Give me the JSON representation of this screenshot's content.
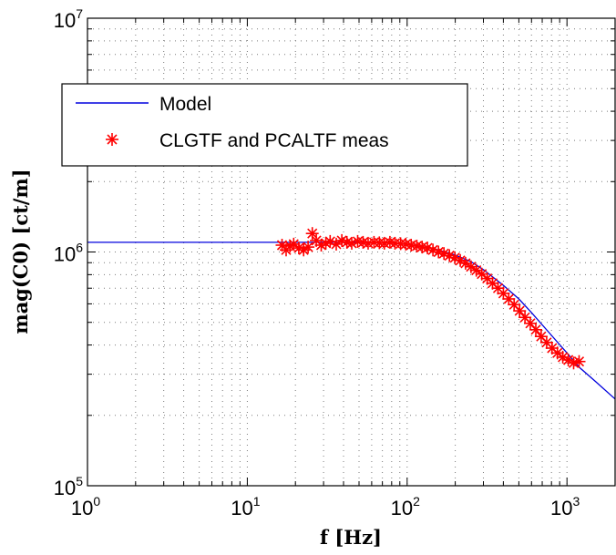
{
  "chart_data": {
    "type": "line",
    "title": "",
    "xlabel": "f  [Hz]",
    "ylabel": "mag(C0)  [ct/m]",
    "xscale": "log",
    "yscale": "log",
    "xlim": [
      1,
      2000
    ],
    "ylim": [
      100000,
      10000000
    ],
    "grid": true,
    "legend_position": "upper-left",
    "x_tick_labels": [
      {
        "value": 1,
        "base": "10",
        "exp": "0"
      },
      {
        "value": 10,
        "base": "10",
        "exp": "1"
      },
      {
        "value": 100,
        "base": "10",
        "exp": "2"
      },
      {
        "value": 1000,
        "base": "10",
        "exp": "3"
      }
    ],
    "y_tick_labels": [
      {
        "value": 100000,
        "base": "10",
        "exp": "5"
      },
      {
        "value": 1000000,
        "base": "10",
        "exp": "6"
      },
      {
        "value": 10000000,
        "base": "10",
        "exp": "7"
      }
    ],
    "series": [
      {
        "name": "Model",
        "style": "line",
        "color": "#0000dd",
        "x": [
          1,
          5,
          10,
          20,
          40,
          60,
          80,
          100,
          120,
          150,
          200,
          250,
          300,
          400,
          500,
          600,
          800,
          1000,
          1200,
          1500,
          2000
        ],
        "y": [
          1100000,
          1100000,
          1100000,
          1100000,
          1100000,
          1095000,
          1090000,
          1075000,
          1060000,
          1030000,
          970000,
          910000,
          840000,
          720000,
          630000,
          550000,
          440000,
          370000,
          320000,
          280000,
          235000
        ]
      },
      {
        "name": "CLGTF and PCALTF meas",
        "style": "marker",
        "marker": "asterisk",
        "color": "#ff0000",
        "x": [
          16.5,
          17.5,
          18.5,
          19.5,
          21,
          22.5,
          24,
          25.5,
          27,
          29,
          31,
          33,
          36,
          39,
          42,
          45,
          49,
          53,
          57,
          62,
          67,
          72,
          78,
          84,
          91,
          98,
          106,
          115,
          124,
          134,
          145,
          157,
          170,
          184,
          199,
          215,
          232,
          251,
          271,
          293,
          317,
          342,
          370,
          400,
          432,
          467,
          505,
          546,
          590,
          638,
          690,
          746,
          806,
          871,
          942,
          1018,
          1100,
          1190
        ],
        "y": [
          1070000,
          1020000,
          1060000,
          1080000,
          1040000,
          1020000,
          1050000,
          1200000,
          1120000,
          1070000,
          1090000,
          1110000,
          1080000,
          1120000,
          1100000,
          1090000,
          1110000,
          1100000,
          1090000,
          1100000,
          1095000,
          1090000,
          1100000,
          1090000,
          1085000,
          1080000,
          1070000,
          1060000,
          1050000,
          1040000,
          1020000,
          1000000,
          985000,
          965000,
          945000,
          920000,
          895000,
          865000,
          835000,
          805000,
          770000,
          735000,
          700000,
          665000,
          630000,
          595000,
          560000,
          525000,
          495000,
          465000,
          435000,
          410000,
          388000,
          370000,
          355000,
          345000,
          335000,
          340000
        ]
      }
    ]
  }
}
